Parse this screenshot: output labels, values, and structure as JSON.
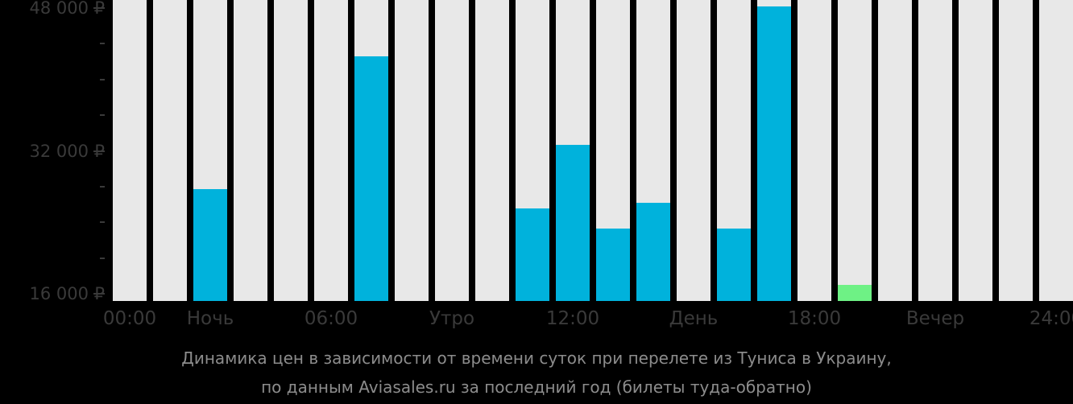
{
  "chart_data": {
    "type": "bar",
    "title": "Динамика цен в зависимости от времени суток при перелете из Туниса в Украину, по данным Aviasales.ru за последний год (билеты туда-обратно)",
    "xlabel": "",
    "ylabel": "",
    "ylim": [
      15200,
      48500
    ],
    "y_ticks": [
      "48 000 ₽",
      "32 000 ₽",
      "16 000 ₽"
    ],
    "x_tick_labels": [
      "00:00",
      "Ночь",
      "06:00",
      "Утро",
      "12:00",
      "День",
      "18:00",
      "Вечер",
      "24:00"
    ],
    "categories": [
      "00",
      "01",
      "02",
      "03",
      "04",
      "05",
      "06",
      "07",
      "08",
      "09",
      "10",
      "11",
      "12",
      "13",
      "14",
      "15",
      "16",
      "17",
      "18",
      "19",
      "20",
      "21",
      "22",
      "23"
    ],
    "values": [
      null,
      null,
      27700,
      null,
      null,
      null,
      42600,
      null,
      null,
      null,
      25600,
      32700,
      23300,
      26200,
      null,
      23300,
      48200,
      null,
      17000,
      null,
      null,
      null,
      null,
      null
    ],
    "bar_colors": {
      "normal": "#00b2dc",
      "cheapest": "#6ef185",
      "empty": "#e8e8e8"
    },
    "cheapest_index": 18,
    "grid": false,
    "legend": "none"
  },
  "caption": {
    "line1": "Динамика цен в зависимости от времени суток при перелете из Туниса в Украину,",
    "line2": "по данным Aviasales.ru за последний год (билеты туда-обратно)"
  }
}
